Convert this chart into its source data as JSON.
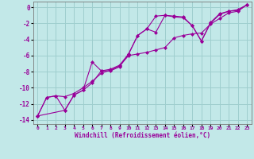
{
  "xlabel": "Windchill (Refroidissement éolien,°C)",
  "ylabel": "",
  "xlim": [
    -0.5,
    23.5
  ],
  "ylim": [
    -14.5,
    0.7
  ],
  "xticks": [
    0,
    1,
    2,
    3,
    4,
    5,
    6,
    7,
    8,
    9,
    10,
    11,
    12,
    13,
    14,
    15,
    16,
    17,
    18,
    19,
    20,
    21,
    22,
    23
  ],
  "yticks": [
    0,
    -2,
    -4,
    -6,
    -8,
    -10,
    -12,
    -14
  ],
  "bg_color": "#c2e8e8",
  "grid_color": "#9ecece",
  "line_color": "#990099",
  "series1_x": [
    0,
    1,
    2,
    3,
    4,
    5,
    6,
    7,
    8,
    9,
    10,
    11,
    12,
    13,
    14,
    15,
    16,
    17,
    18,
    19,
    20,
    21,
    22,
    23
  ],
  "series1_y": [
    -13.5,
    -11.2,
    -11.0,
    -12.8,
    -10.9,
    -10.3,
    -6.8,
    -7.9,
    -7.9,
    -7.4,
    -5.8,
    -3.5,
    -2.7,
    -3.1,
    -1.0,
    -1.2,
    -1.3,
    -2.3,
    -4.2,
    -2.0,
    -0.9,
    -0.5,
    -0.4,
    0.3
  ],
  "series2_x": [
    0,
    1,
    2,
    3,
    4,
    5,
    6,
    7,
    8,
    9,
    10,
    11,
    12,
    13,
    14,
    15,
    16,
    17,
    18,
    19,
    20,
    21,
    22,
    23
  ],
  "series2_y": [
    -13.5,
    -11.2,
    -11.0,
    -11.1,
    -10.7,
    -10.0,
    -9.2,
    -8.2,
    -7.8,
    -7.3,
    -6.0,
    -5.8,
    -5.6,
    -5.3,
    -5.0,
    -3.8,
    -3.5,
    -3.3,
    -3.2,
    -2.1,
    -1.4,
    -0.7,
    -0.5,
    0.3
  ],
  "series3_x": [
    0,
    3,
    4,
    5,
    6,
    7,
    8,
    9,
    10,
    11,
    12,
    13,
    14,
    15,
    16,
    17,
    18,
    19,
    20,
    21,
    22,
    23
  ],
  "series3_y": [
    -13.5,
    -12.8,
    -10.9,
    -10.3,
    -9.4,
    -7.9,
    -7.7,
    -7.2,
    -5.8,
    -3.5,
    -2.7,
    -1.1,
    -1.0,
    -1.1,
    -1.2,
    -2.3,
    -4.2,
    -1.9,
    -0.8,
    -0.5,
    -0.3,
    0.3
  ]
}
